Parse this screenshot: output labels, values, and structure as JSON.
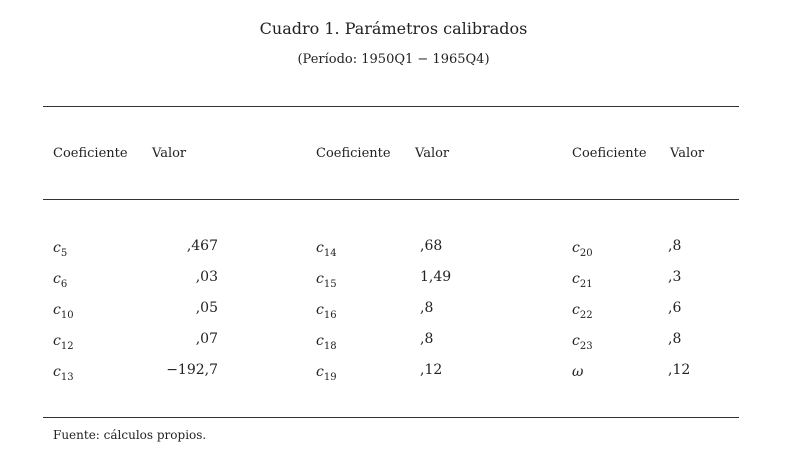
{
  "title": "Cuadro 1. Parámetros calibrados",
  "subtitle": "(Período: 1950Q1 − 1965Q4)",
  "headers": [
    {
      "coef": "Coeficiente",
      "value": "Valor"
    },
    {
      "coef": "Coeficiente",
      "value": "Valor"
    },
    {
      "coef": "Coeficiente",
      "value": "Valor"
    }
  ],
  "columns": [
    [
      {
        "base": "c",
        "sub": "5",
        "value": ",467"
      },
      {
        "base": "c",
        "sub": "6",
        "value": ",03"
      },
      {
        "base": "c",
        "sub": "10",
        "value": ",05"
      },
      {
        "base": "c",
        "sub": "12",
        "value": ",07"
      },
      {
        "base": "c",
        "sub": "13",
        "value": "−192,7"
      }
    ],
    [
      {
        "base": "c",
        "sub": "14",
        "value": ",68"
      },
      {
        "base": "c",
        "sub": "15",
        "value": "1,49"
      },
      {
        "base": "c",
        "sub": "16",
        "value": ",8"
      },
      {
        "base": "c",
        "sub": "18",
        "value": ",8"
      },
      {
        "base": "c",
        "sub": "19",
        "value": ",12"
      }
    ],
    [
      {
        "base": "c",
        "sub": "20",
        "value": ",8"
      },
      {
        "base": "c",
        "sub": "21",
        "value": ",3"
      },
      {
        "base": "c",
        "sub": "22",
        "value": ",6"
      },
      {
        "base": "c",
        "sub": "23",
        "value": ",8"
      },
      {
        "base": "ω",
        "sub": "",
        "value": ",12"
      }
    ]
  ],
  "note": "Fuente: cálculos propios."
}
